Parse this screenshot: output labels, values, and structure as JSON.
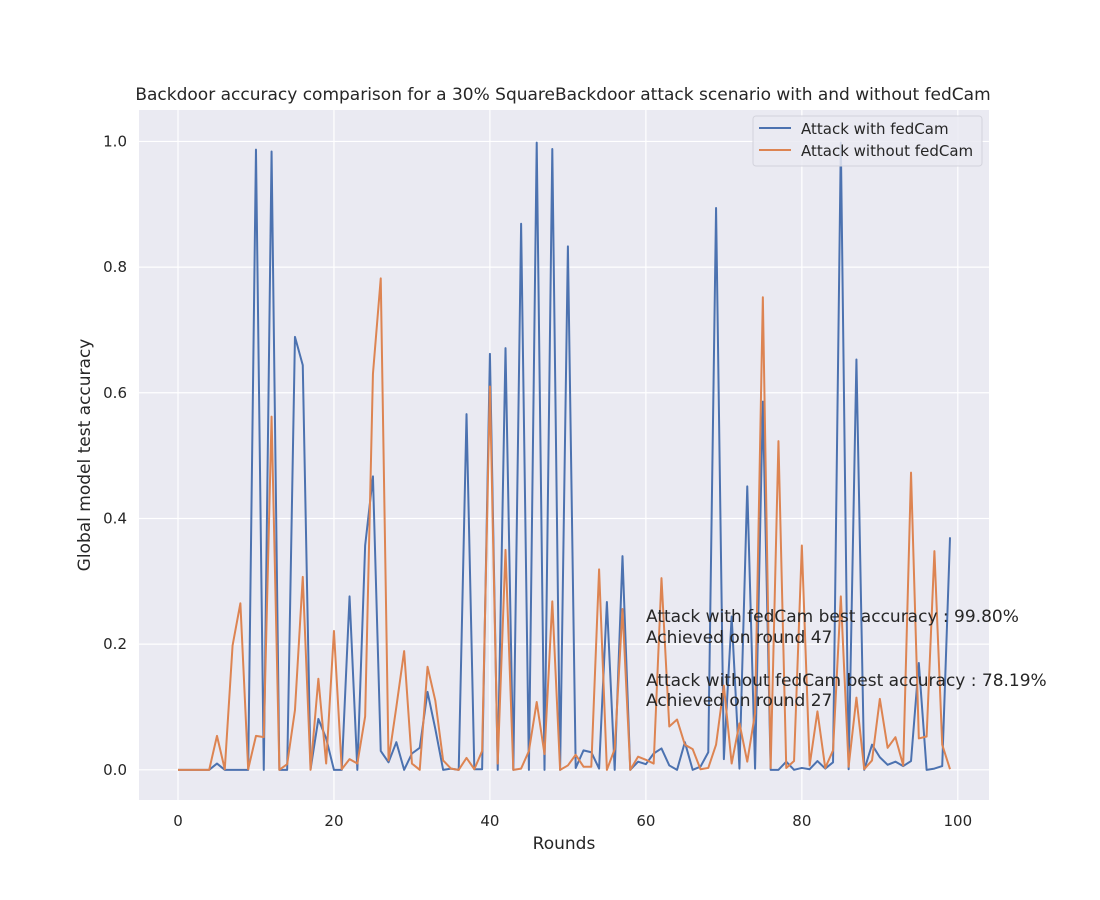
{
  "chart_data": {
    "type": "line",
    "title": "Backdoor accuracy comparison for a 30% SquareBackdoor attack scenario with and without fedCam",
    "xlabel": "Rounds",
    "ylabel": "Global model test accuracy",
    "xlim": [
      -5,
      104
    ],
    "ylim": [
      -0.048,
      1.05
    ],
    "xticks": [
      0,
      20,
      40,
      60,
      80,
      100
    ],
    "yticks": [
      0.0,
      0.2,
      0.4,
      0.6,
      0.8,
      1.0
    ],
    "xtick_labels": [
      "0",
      "20",
      "40",
      "60",
      "80",
      "100"
    ],
    "ytick_labels": [
      "0.0",
      "0.2",
      "0.4",
      "0.6",
      "0.8",
      "1.0"
    ],
    "grid": true,
    "legend_position": "top-right",
    "x": [
      0,
      1,
      2,
      3,
      4,
      5,
      6,
      7,
      8,
      9,
      10,
      11,
      12,
      13,
      14,
      15,
      16,
      17,
      18,
      19,
      20,
      21,
      22,
      23,
      24,
      25,
      26,
      27,
      28,
      29,
      30,
      31,
      32,
      33,
      34,
      35,
      36,
      37,
      38,
      39,
      40,
      41,
      42,
      43,
      44,
      45,
      46,
      47,
      48,
      49,
      50,
      51,
      52,
      53,
      54,
      55,
      56,
      57,
      58,
      59,
      60,
      61,
      62,
      63,
      64,
      65,
      66,
      67,
      68,
      69,
      70,
      71,
      72,
      73,
      74,
      75,
      76,
      77,
      78,
      79,
      80,
      81,
      82,
      83,
      84,
      85,
      86,
      87,
      88,
      89,
      90,
      91,
      92,
      93,
      94,
      95,
      96,
      97,
      98,
      99
    ],
    "series": [
      {
        "name": "Attack with fedCam",
        "color": "#4c72b0",
        "values": [
          0,
          0,
          0,
          0,
          0,
          0.01,
          0,
          0,
          0,
          0,
          0.987,
          0,
          0.984,
          0,
          0,
          0.689,
          0.644,
          0.001,
          0.081,
          0.05,
          0,
          0,
          0.276,
          0,
          0.357,
          0.467,
          0.03,
          0.012,
          0.044,
          0,
          0.026,
          0.035,
          0.124,
          0.065,
          0,
          0.002,
          0,
          0.566,
          0.001,
          0.001,
          0.662,
          0,
          0.671,
          0,
          0.869,
          0,
          0.998,
          0,
          0.988,
          0,
          0.833,
          0.003,
          0.031,
          0.028,
          0.002,
          0.267,
          0,
          0.34,
          0,
          0.013,
          0.009,
          0.026,
          0.034,
          0.007,
          0,
          0.044,
          0,
          0.005,
          0.028,
          0.894,
          0.017,
          0.244,
          0.002,
          0.451,
          0.002,
          0.586,
          0,
          0,
          0.013,
          0,
          0.003,
          0.001,
          0.014,
          0.002,
          0.012,
          0.998,
          0.001,
          0.653,
          0,
          0.04,
          0.02,
          0.008,
          0.013,
          0.006,
          0.014,
          0.17,
          0,
          0.002,
          0.006,
          0.37
        ]
      },
      {
        "name": "Attack without fedCam",
        "color": "#dd8452",
        "values": [
          0,
          0,
          0,
          0,
          0,
          0.054,
          0.001,
          0.198,
          0.265,
          0.001,
          0.054,
          0.052,
          0.562,
          0,
          0.009,
          0.095,
          0.307,
          0,
          0.145,
          0.01,
          0.221,
          0.001,
          0.017,
          0.01,
          0.085,
          0.63,
          0.782,
          0.015,
          0.1,
          0.189,
          0.01,
          0,
          0.164,
          0.11,
          0.015,
          0.002,
          0,
          0.019,
          0.001,
          0.03,
          0.61,
          0.01,
          0.35,
          0,
          0.002,
          0.03,
          0.108,
          0.025,
          0.268,
          0,
          0.007,
          0.024,
          0.005,
          0.005,
          0.319,
          0,
          0.033,
          0.256,
          0,
          0.021,
          0.016,
          0.01,
          0.305,
          0.069,
          0.08,
          0.04,
          0.033,
          0.001,
          0.003,
          0.04,
          0.134,
          0.01,
          0.074,
          0.013,
          0.09,
          0.752,
          0.003,
          0.523,
          0.003,
          0.014,
          0.357,
          0.007,
          0.093,
          0.003,
          0.031,
          0.276,
          0.005,
          0.115,
          0.001,
          0.015,
          0.113,
          0.035,
          0.052,
          0.007,
          0.473,
          0.05,
          0.053,
          0.348,
          0.04,
          0.001
        ]
      }
    ],
    "annotations": [
      "Attack with fedCam best accuracy : 99.80%",
      "Achieved on round 47",
      "Attack without fedCam best accuracy : 78.19%",
      "Achieved on round 27"
    ]
  },
  "style": {
    "plot_background": "#eaeaf2",
    "grid_color": "#ffffff",
    "text_color": "#262626"
  }
}
